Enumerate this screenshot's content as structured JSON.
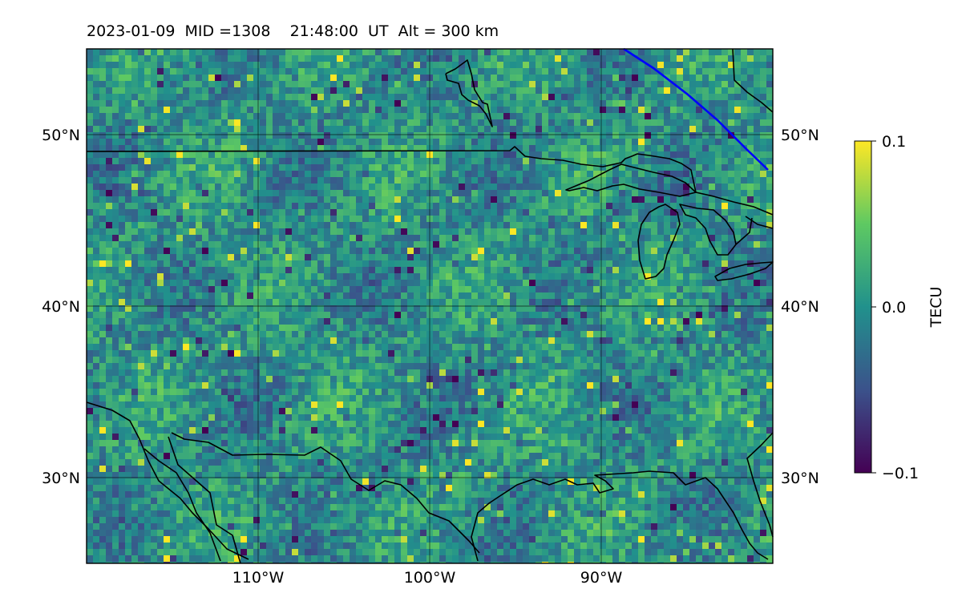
{
  "title": "2023-01-09  MID =1308    21:48:00  UT  Alt = 300 km",
  "map": {
    "lon_range": [
      -120,
      -80
    ],
    "lat_range": [
      25,
      55
    ],
    "lon_ticks": [
      {
        "value": -110,
        "label": "110°W"
      },
      {
        "value": -100,
        "label": "100°W"
      },
      {
        "value": -90,
        "label": "90°W"
      }
    ],
    "lat_ticks": [
      {
        "value": 30,
        "label": "30°N"
      },
      {
        "value": 40,
        "label": "40°N"
      },
      {
        "value": 50,
        "label": "50°N"
      }
    ],
    "grid": true,
    "field": "TEC perturbation",
    "colormap": "viridis"
  },
  "colorbar": {
    "label": "TECU",
    "min": -0.1,
    "max": 0.1,
    "ticks": [
      {
        "value": 0.1,
        "label": "0.1"
      },
      {
        "value": 0.0,
        "label": "0.0"
      },
      {
        "value": -0.1,
        "label": "−0.1"
      }
    ]
  },
  "colors": {
    "coastline": "#000000",
    "terminator": "#0000ff",
    "viridis": [
      "#440154",
      "#3b528b",
      "#21918c",
      "#5ec962",
      "#fde725"
    ]
  }
}
